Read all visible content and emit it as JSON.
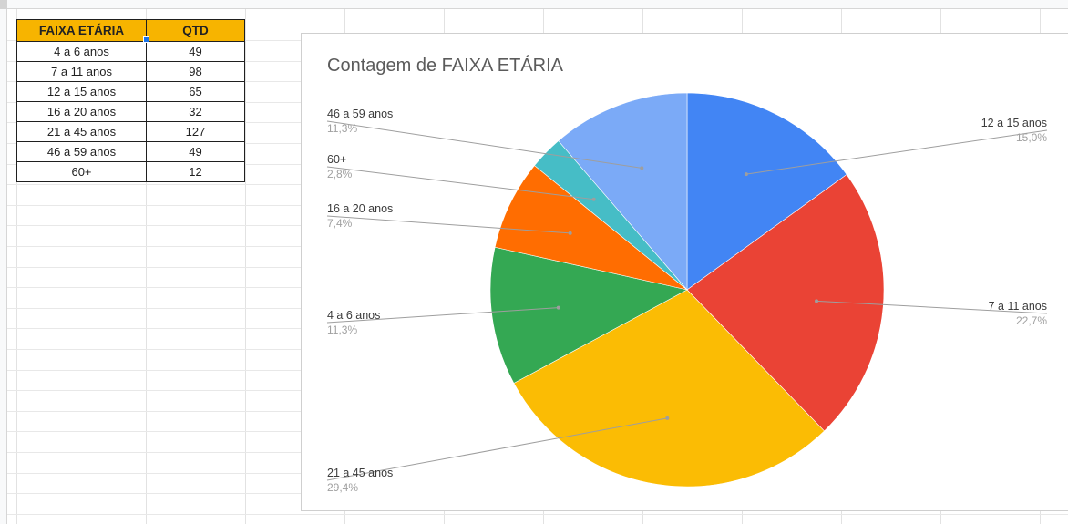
{
  "table": {
    "headers": [
      "FAIXA ETÁRIA",
      "QTD"
    ],
    "rows": [
      [
        "4 a 6 anos",
        "49"
      ],
      [
        "7 a 11 anos",
        "98"
      ],
      [
        "12 a 15 anos",
        "65"
      ],
      [
        "16 a 20 anos",
        "32"
      ],
      [
        "21 a 45 anos",
        "127"
      ],
      [
        "46 a 59 anos",
        "49"
      ],
      [
        "60+",
        "12"
      ]
    ],
    "header_color": "#f7b400"
  },
  "chart_data": {
    "type": "pie",
    "title": "Contagem de FAIXA ETÁRIA",
    "slices": [
      {
        "label": "12 a 15 anos",
        "value": 65,
        "percent": "15,0%",
        "color": "#4285f4"
      },
      {
        "label": "7 a 11 anos",
        "value": 98,
        "percent": "22,7%",
        "color": "#ea4335"
      },
      {
        "label": "21 a 45 anos",
        "value": 127,
        "percent": "29,4%",
        "color": "#fbbc04"
      },
      {
        "label": "4 a 6 anos",
        "value": 49,
        "percent": "11,3%",
        "color": "#34a853"
      },
      {
        "label": "16 a 20 anos",
        "value": 32,
        "percent": "7,4%",
        "color": "#ff6d01"
      },
      {
        "label": "60+",
        "value": 12,
        "percent": "2,8%",
        "color": "#46bdc6"
      },
      {
        "label": "46 a 59 anos",
        "value": 49,
        "percent": "11,3%",
        "color": "#7baaf7"
      }
    ],
    "legend": "callout labels",
    "start_angle": "top, clockwise"
  }
}
